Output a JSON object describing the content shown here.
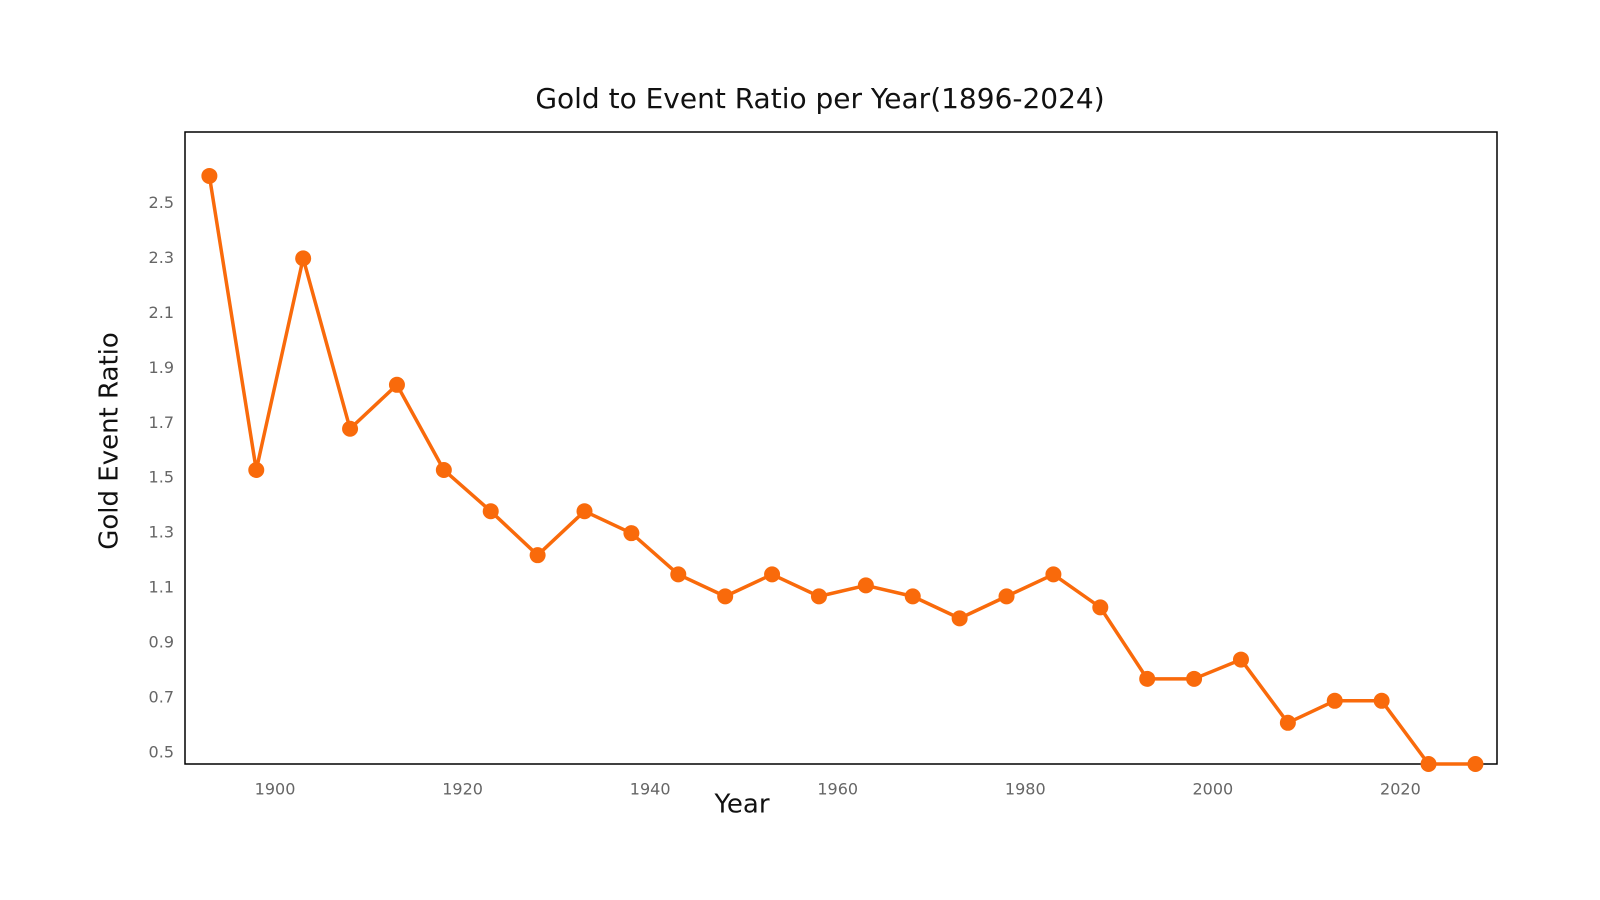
{
  "chart_data": {
    "type": "line",
    "title": "Gold to Event Ratio per Year(1896-2024)",
    "x_label": "Year",
    "y_label": "Gold Event Ratio",
    "x": [
      1893,
      1898,
      1903,
      1908,
      1913,
      1918,
      1923,
      1928,
      1933,
      1938,
      1943,
      1948,
      1953,
      1958,
      1963,
      1968,
      1973,
      1978,
      1983,
      1988,
      1993,
      1998,
      2003,
      2008,
      2013,
      2018,
      2023,
      2028
    ],
    "series": [
      {
        "name": "Gold Event Ratio",
        "color": "#f96a0b",
        "values": [
          2.6,
          1.53,
          2.3,
          1.68,
          1.84,
          1.53,
          1.38,
          1.22,
          1.38,
          1.3,
          1.15,
          1.07,
          1.15,
          1.07,
          1.11,
          1.07,
          0.99,
          1.07,
          1.15,
          1.03,
          0.77,
          0.77,
          0.84,
          0.61,
          0.69,
          0.69,
          0.46,
          0.46
        ]
      }
    ],
    "xlim": [
      1890.4,
      2030.3
    ],
    "ylim": [
      0.46,
      2.76
    ],
    "xticks": [
      1900,
      1920,
      1940,
      1960,
      1980,
      2000,
      2020
    ],
    "yticks": [
      0.5,
      0.7,
      0.9,
      1.1,
      1.3,
      1.5,
      1.7,
      1.9,
      2.1,
      2.3,
      2.5
    ],
    "grid": false
  }
}
